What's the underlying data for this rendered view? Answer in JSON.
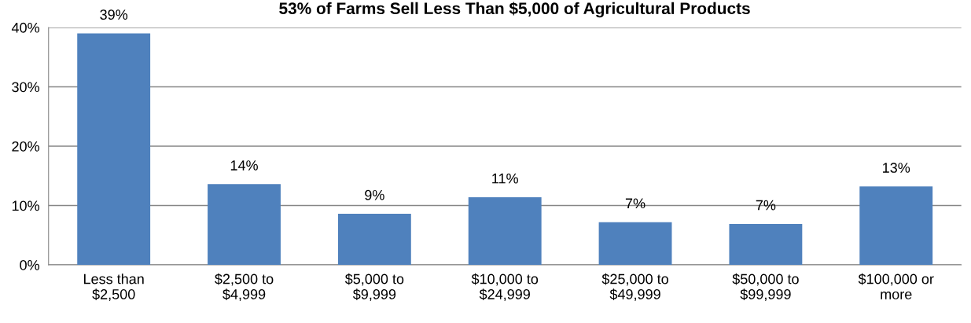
{
  "chart_data": {
    "type": "bar",
    "title": "53% of Farms Sell Less Than $5,000 of Agricultural Products",
    "categories": [
      "Less than\n$2,500",
      "$2,500 to\n$4,999",
      "$5,000 to\n$9,999",
      "$10,000 to\n$24,999",
      "$25,000 to\n$49,999",
      "$50,000 to\n$99,999",
      "$100,000 or\nmore"
    ],
    "values": [
      39,
      13.6,
      8.6,
      11.4,
      7.2,
      6.9,
      13.2
    ],
    "value_labels": [
      "39%",
      "14%",
      "9%",
      "11%",
      "7%",
      "7%",
      "13%"
    ],
    "color": "#4f81bd",
    "ylim": [
      0,
      40
    ],
    "yticks": [
      {
        "value": 0,
        "label": "0%"
      },
      {
        "value": 10,
        "label": "10%"
      },
      {
        "value": 20,
        "label": "20%"
      },
      {
        "value": 30,
        "label": "30%"
      },
      {
        "value": 40,
        "label": "40%"
      }
    ],
    "grid": "y",
    "legend": false
  }
}
